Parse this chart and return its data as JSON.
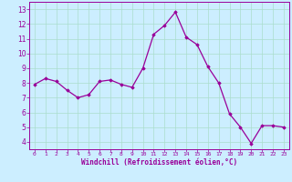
{
  "x": [
    0,
    1,
    2,
    3,
    4,
    5,
    6,
    7,
    8,
    9,
    10,
    11,
    12,
    13,
    14,
    15,
    16,
    17,
    18,
    19,
    20,
    21,
    22,
    23
  ],
  "y": [
    7.9,
    8.3,
    8.1,
    7.5,
    7.0,
    7.2,
    8.1,
    8.2,
    7.9,
    7.7,
    9.0,
    11.3,
    11.9,
    12.8,
    11.1,
    10.6,
    9.1,
    8.0,
    5.9,
    5.0,
    3.9,
    5.1,
    5.1,
    5.0
  ],
  "line_color": "#990099",
  "marker": "D",
  "marker_size": 1.8,
  "bg_color": "#cceeff",
  "grid_color": "#aaddcc",
  "xlabel": "Windchill (Refroidissement éolien,°C)",
  "xlabel_color": "#990099",
  "tick_color": "#990099",
  "xlim": [
    -0.5,
    23.5
  ],
  "ylim": [
    3.5,
    13.5
  ],
  "yticks": [
    4,
    5,
    6,
    7,
    8,
    9,
    10,
    11,
    12,
    13
  ],
  "xticks": [
    0,
    1,
    2,
    3,
    4,
    5,
    6,
    7,
    8,
    9,
    10,
    11,
    12,
    13,
    14,
    15,
    16,
    17,
    18,
    19,
    20,
    21,
    22,
    23
  ]
}
